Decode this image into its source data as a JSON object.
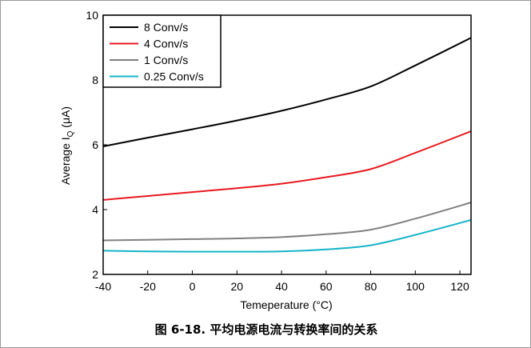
{
  "caption": "图 6-18. 平均电源电流与转换率间的关系",
  "chart_data": {
    "type": "line",
    "xlabel_main": "Temeperature (",
    "xlabel_unit": "°C)",
    "ylabel_main": "Average I",
    "ylabel_sub": "Q",
    "ylabel_unit": " (μA)",
    "xlim": [
      -40,
      125
    ],
    "ylim": [
      2,
      10
    ],
    "x_ticks": [
      "-40",
      "-20",
      "0",
      "20",
      "40",
      "60",
      "80",
      "100",
      "120"
    ],
    "x_tick_values": [
      -40,
      -20,
      0,
      20,
      40,
      60,
      80,
      100,
      120
    ],
    "y_ticks": [
      "2",
      "4",
      "6",
      "8",
      "10"
    ],
    "y_tick_values": [
      2,
      4,
      6,
      8,
      10
    ],
    "grid": false,
    "legend_position": "top-left",
    "x": [
      -40,
      -20,
      0,
      20,
      40,
      60,
      80,
      100,
      125
    ],
    "series": [
      {
        "name": "8 Conv/s",
        "color": "#000000",
        "values": [
          5.95,
          6.22,
          6.48,
          6.75,
          7.05,
          7.4,
          7.8,
          8.45,
          9.3
        ]
      },
      {
        "name": "4 Conv/s",
        "color": "#e8191f",
        "values": [
          4.3,
          4.42,
          4.54,
          4.66,
          4.8,
          5.0,
          5.25,
          5.75,
          6.42
        ]
      },
      {
        "name": "1 Conv/s",
        "color": "#808080",
        "values": [
          3.05,
          3.07,
          3.09,
          3.11,
          3.15,
          3.24,
          3.38,
          3.72,
          4.22
        ]
      },
      {
        "name": "0.25 Conv/s",
        "color": "#16b4c8",
        "values": [
          2.73,
          2.71,
          2.7,
          2.7,
          2.71,
          2.77,
          2.9,
          3.22,
          3.68
        ]
      }
    ]
  }
}
